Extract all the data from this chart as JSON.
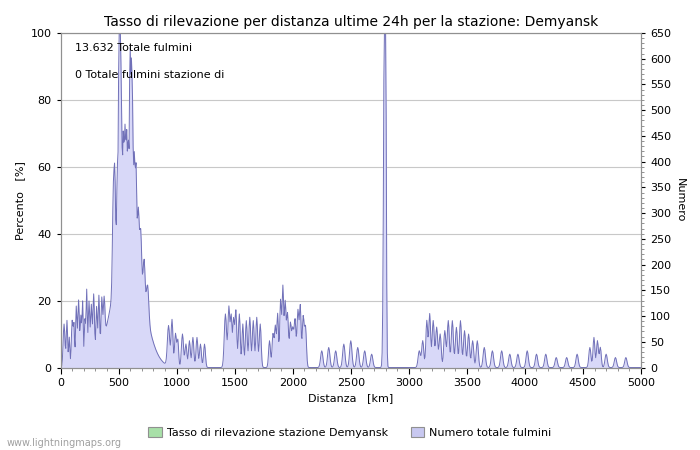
{
  "title": "Tasso di rilevazione per distanza ultime 24h per la stazione: Demyansk",
  "xlabel": "Distanza   [km]",
  "ylabel_left": "Percento   [%]",
  "ylabel_right": "Numero",
  "annotation_line1": "13.632 Totale fulmini",
  "annotation_line2": "0 Totale fulmini stazione di",
  "xlim": [
    0,
    5000
  ],
  "ylim_left": [
    0,
    100
  ],
  "ylim_right": [
    0,
    650
  ],
  "watermark": "www.lightningmaps.org",
  "legend_label1": "Tasso di rilevazione stazione Demyansk",
  "legend_label2": "Numero totale fulmini",
  "legend_color1": "#a8e0a8",
  "legend_color2": "#c8c8f0",
  "line_color": "#7070b8",
  "fill_color": "#d8d8f8",
  "background_color": "#ffffff",
  "grid_color": "#c8c8c8",
  "title_fontsize": 10,
  "axis_fontsize": 8,
  "tick_fontsize": 8,
  "xticks": [
    0,
    500,
    1000,
    1500,
    2000,
    2500,
    3000,
    3500,
    4000,
    4500,
    5000
  ],
  "yticks_left": [
    0,
    20,
    40,
    60,
    80,
    100
  ],
  "yticks_right": [
    0,
    50,
    100,
    150,
    200,
    250,
    300,
    350,
    400,
    450,
    500,
    550,
    600,
    650
  ]
}
